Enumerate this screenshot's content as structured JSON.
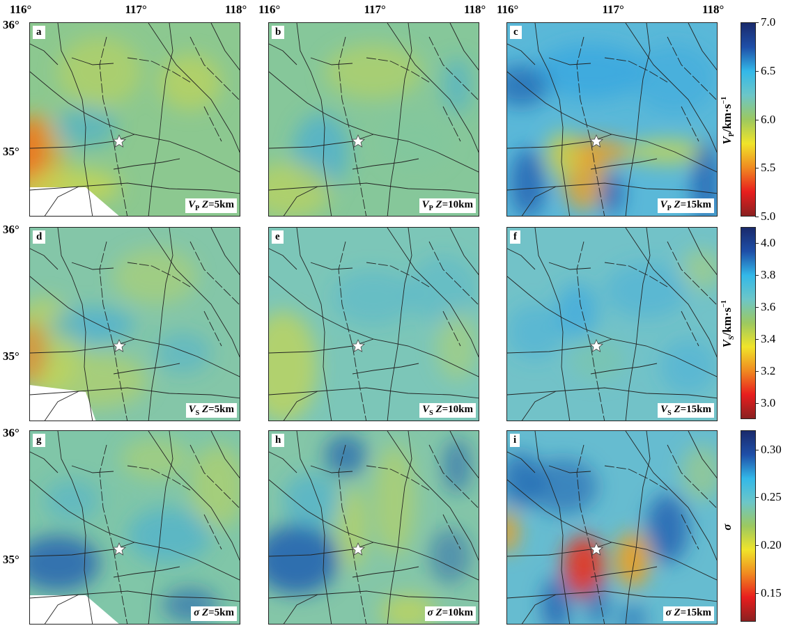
{
  "x_ticks": [
    "116°",
    "117°",
    "118°"
  ],
  "y_ticks": [
    "36°",
    "35°"
  ],
  "panels": [
    {
      "label": "a",
      "param": "V",
      "sub": "P",
      "z": "Z",
      "depth": "=5km"
    },
    {
      "label": "b",
      "param": "V",
      "sub": "P",
      "z": "Z",
      "depth": "=10km"
    },
    {
      "label": "c",
      "param": "V",
      "sub": "P",
      "z": "Z",
      "depth": "=15km"
    },
    {
      "label": "d",
      "param": "V",
      "sub": "S",
      "z": "Z",
      "depth": "=5km"
    },
    {
      "label": "e",
      "param": "V",
      "sub": "S",
      "z": "Z",
      "depth": "=10km"
    },
    {
      "label": "f",
      "param": "V",
      "sub": "S",
      "z": "Z",
      "depth": "=15km"
    },
    {
      "label": "g",
      "param": "σ",
      "sub": "",
      "z": "Z",
      "depth": "=5km"
    },
    {
      "label": "h",
      "param": "σ",
      "sub": "",
      "z": "Z",
      "depth": "=10km"
    },
    {
      "label": "i",
      "param": "σ",
      "sub": "",
      "z": "Z",
      "depth": "=15km"
    }
  ],
  "colorbars": [
    {
      "title": "V",
      "sub": "P",
      "unit": "/km·s",
      "exp": "−1",
      "ticks": [
        "7.0",
        "6.5",
        "6.0",
        "5.5",
        "5.0"
      ],
      "range": [
        5.0,
        7.0
      ]
    },
    {
      "title": "V",
      "sub": "S",
      "unit": "/km·s",
      "exp": "−1",
      "ticks": [
        "4.0",
        "3.8",
        "3.6",
        "3.4",
        "3.2",
        "3.0"
      ],
      "range": [
        2.9,
        4.1
      ]
    },
    {
      "title": "σ",
      "sub": "",
      "unit": "",
      "exp": "",
      "ticks": [
        "0.30",
        "0.25",
        "0.20",
        "0.15"
      ],
      "range": [
        0.12,
        0.32
      ]
    }
  ],
  "colormap": [
    "#1a2a6c",
    "#1e4fa8",
    "#33b8e8",
    "#6cc6c8",
    "#9cc860",
    "#f0e42a",
    "#f08a20",
    "#e81e1e",
    "#8a2020"
  ],
  "epicenter_marker": "white-star-icon"
}
